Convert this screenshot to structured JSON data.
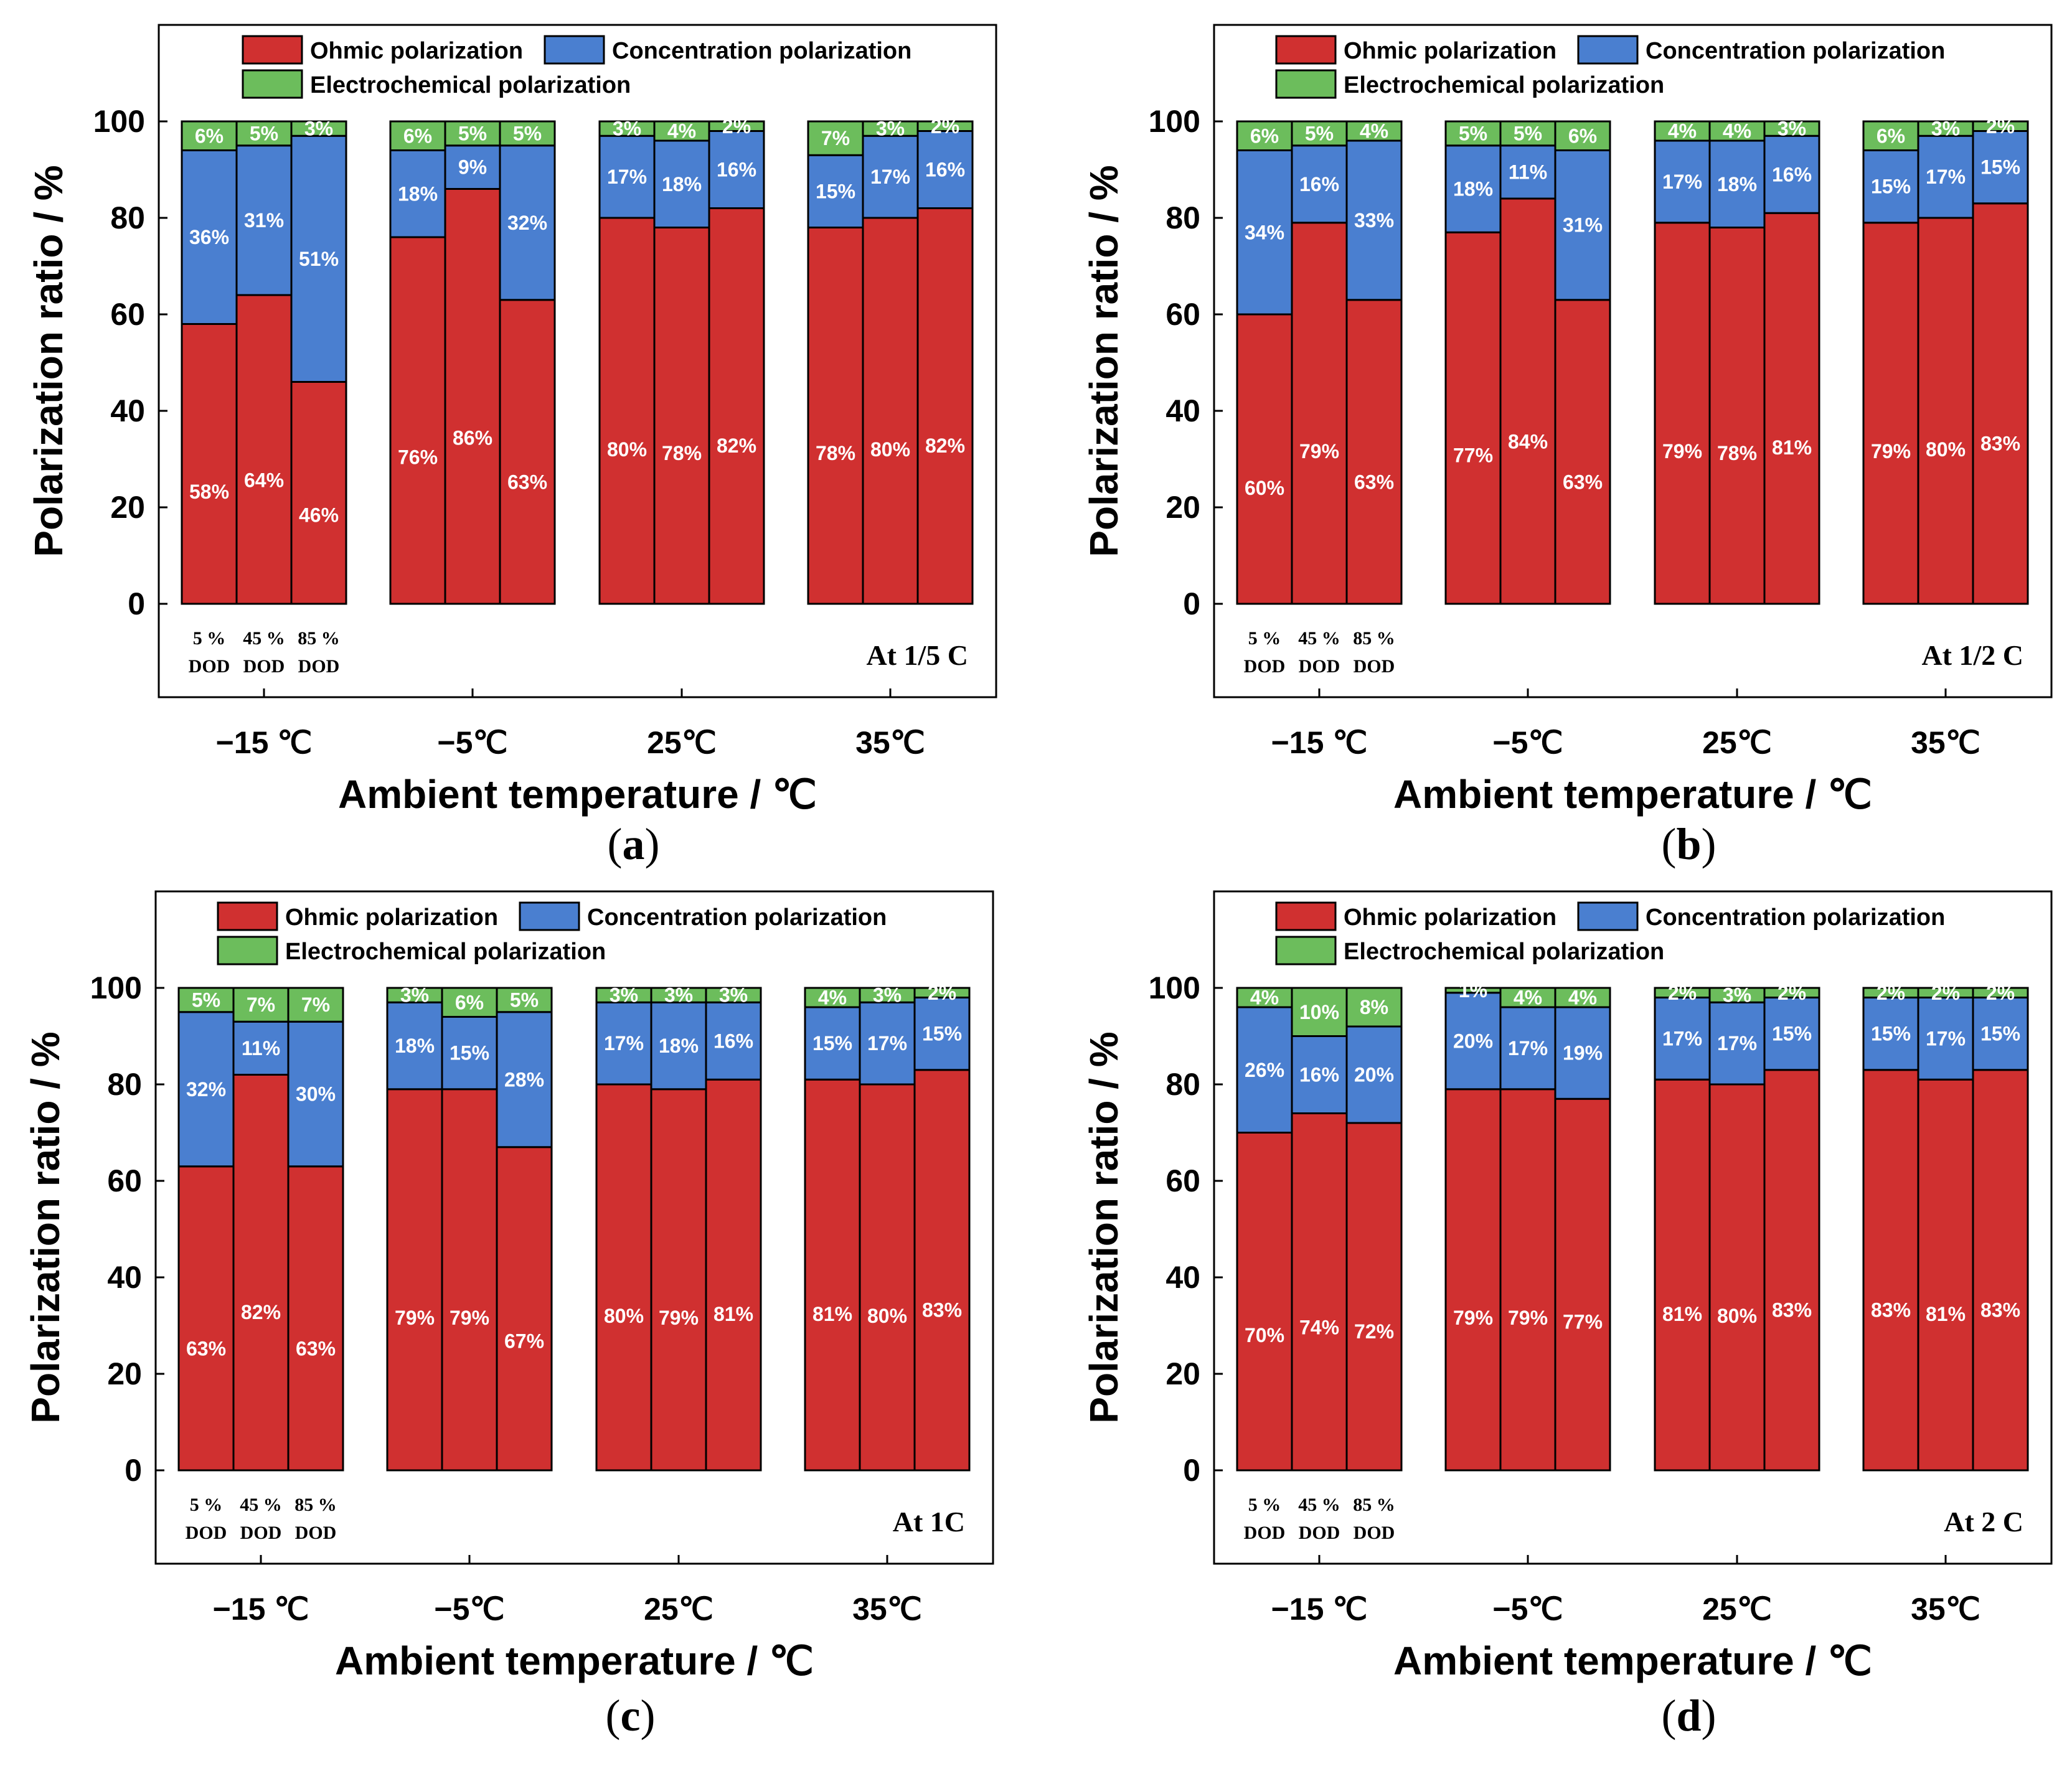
{
  "colors": {
    "ohmic": "#d03030",
    "concentration": "#4a7fd0",
    "electrochemical": "#6cbd5c",
    "edge": "#000000",
    "label": "#ffffff"
  },
  "legend": {
    "ohmic": "Ohmic polarization",
    "concentration": "Concentration polarization",
    "electrochemical": "Electrochemical polarization"
  },
  "chart_data": [
    {
      "type": "bar",
      "stacked": true,
      "caption": "(a)",
      "rate_label": "At 1/5 C",
      "xlabel": "Ambient temperature / ℃",
      "ylabel": "Polarization ratio / %",
      "yticks": [
        "0",
        "20",
        "40",
        "60",
        "80",
        "100"
      ],
      "ylim": [
        -20,
        120
      ],
      "groups": [
        "−15 ℃",
        "−5℃",
        "25℃",
        "35℃"
      ],
      "dod_labels": [
        "5 %",
        "45 %",
        "85 %"
      ],
      "dod_unit": "DOD",
      "series": [
        {
          "name": "Ohmic polarization",
          "values": [
            [
              58,
              64,
              46
            ],
            [
              76,
              86,
              63
            ],
            [
              80,
              78,
              82
            ],
            [
              78,
              80,
              82
            ]
          ]
        },
        {
          "name": "Concentration polarization",
          "values": [
            [
              36,
              31,
              51
            ],
            [
              18,
              9,
              32
            ],
            [
              17,
              18,
              16
            ],
            [
              15,
              17,
              16
            ]
          ]
        },
        {
          "name": "Electrochemical polarization",
          "values": [
            [
              6,
              5,
              3
            ],
            [
              6,
              5,
              5
            ],
            [
              3,
              4,
              2
            ],
            [
              7,
              3,
              2
            ]
          ]
        }
      ]
    },
    {
      "type": "bar",
      "stacked": true,
      "caption": "(b)",
      "rate_label": "At 1/2 C",
      "xlabel": "Ambient temperature / ℃",
      "ylabel": "Polarization ratio / %",
      "yticks": [
        "0",
        "20",
        "40",
        "60",
        "80",
        "100"
      ],
      "ylim": [
        -20,
        120
      ],
      "groups": [
        "−15 ℃",
        "−5℃",
        "25℃",
        "35℃"
      ],
      "dod_labels": [
        "5 %",
        "45 %",
        "85 %"
      ],
      "dod_unit": "DOD",
      "series": [
        {
          "name": "Ohmic polarization",
          "values": [
            [
              60,
              79,
              63
            ],
            [
              77,
              84,
              63
            ],
            [
              79,
              78,
              81
            ],
            [
              79,
              80,
              83
            ]
          ]
        },
        {
          "name": "Concentration polarization",
          "values": [
            [
              34,
              16,
              33
            ],
            [
              18,
              11,
              31
            ],
            [
              17,
              18,
              16
            ],
            [
              15,
              17,
              15
            ]
          ]
        },
        {
          "name": "Electrochemical polarization",
          "values": [
            [
              6,
              5,
              4
            ],
            [
              5,
              5,
              6
            ],
            [
              4,
              4,
              3
            ],
            [
              6,
              3,
              2
            ]
          ]
        }
      ]
    },
    {
      "type": "bar",
      "stacked": true,
      "caption": "(c)",
      "rate_label": "At 1C",
      "xlabel": "Ambient temperature / ℃",
      "ylabel": "Polarization ratio / %",
      "yticks": [
        "0",
        "20",
        "40",
        "60",
        "80",
        "100"
      ],
      "ylim": [
        -20,
        120
      ],
      "groups": [
        "−15 ℃",
        "−5℃",
        "25℃",
        "35℃"
      ],
      "dod_labels": [
        "5 %",
        "45 %",
        "85 %"
      ],
      "dod_unit": "DOD",
      "series": [
        {
          "name": "Ohmic polarization",
          "values": [
            [
              63,
              82,
              63
            ],
            [
              79,
              79,
              67
            ],
            [
              80,
              79,
              81
            ],
            [
              81,
              80,
              83
            ]
          ]
        },
        {
          "name": "Concentration polarization",
          "values": [
            [
              32,
              11,
              30
            ],
            [
              18,
              15,
              28
            ],
            [
              17,
              18,
              16
            ],
            [
              15,
              17,
              15
            ]
          ]
        },
        {
          "name": "Electrochemical polarization",
          "values": [
            [
              5,
              7,
              7
            ],
            [
              3,
              6,
              5
            ],
            [
              3,
              3,
              3
            ],
            [
              4,
              3,
              2
            ]
          ]
        }
      ]
    },
    {
      "type": "bar",
      "stacked": true,
      "caption": "(d)",
      "rate_label": "At 2 C",
      "xlabel": "Ambient temperature / ℃",
      "ylabel": "Polarization ratio / %",
      "yticks": [
        "0",
        "20",
        "40",
        "60",
        "80",
        "100"
      ],
      "ylim": [
        -20,
        120
      ],
      "groups": [
        "−15 ℃",
        "−5℃",
        "25℃",
        "35℃"
      ],
      "dod_labels": [
        "5 %",
        "45 %",
        "85 %"
      ],
      "dod_unit": "DOD",
      "series": [
        {
          "name": "Ohmic polarization",
          "values": [
            [
              70,
              74,
              72
            ],
            [
              79,
              79,
              77
            ],
            [
              81,
              80,
              83
            ],
            [
              83,
              81,
              83
            ]
          ]
        },
        {
          "name": "Concentration polarization",
          "values": [
            [
              26,
              16,
              20
            ],
            [
              20,
              17,
              19
            ],
            [
              17,
              17,
              15
            ],
            [
              15,
              17,
              15
            ]
          ]
        },
        {
          "name": "Electrochemical polarization",
          "values": [
            [
              4,
              10,
              8
            ],
            [
              1,
              4,
              4
            ],
            [
              2,
              3,
              2
            ],
            [
              2,
              2,
              2
            ]
          ]
        }
      ]
    }
  ]
}
